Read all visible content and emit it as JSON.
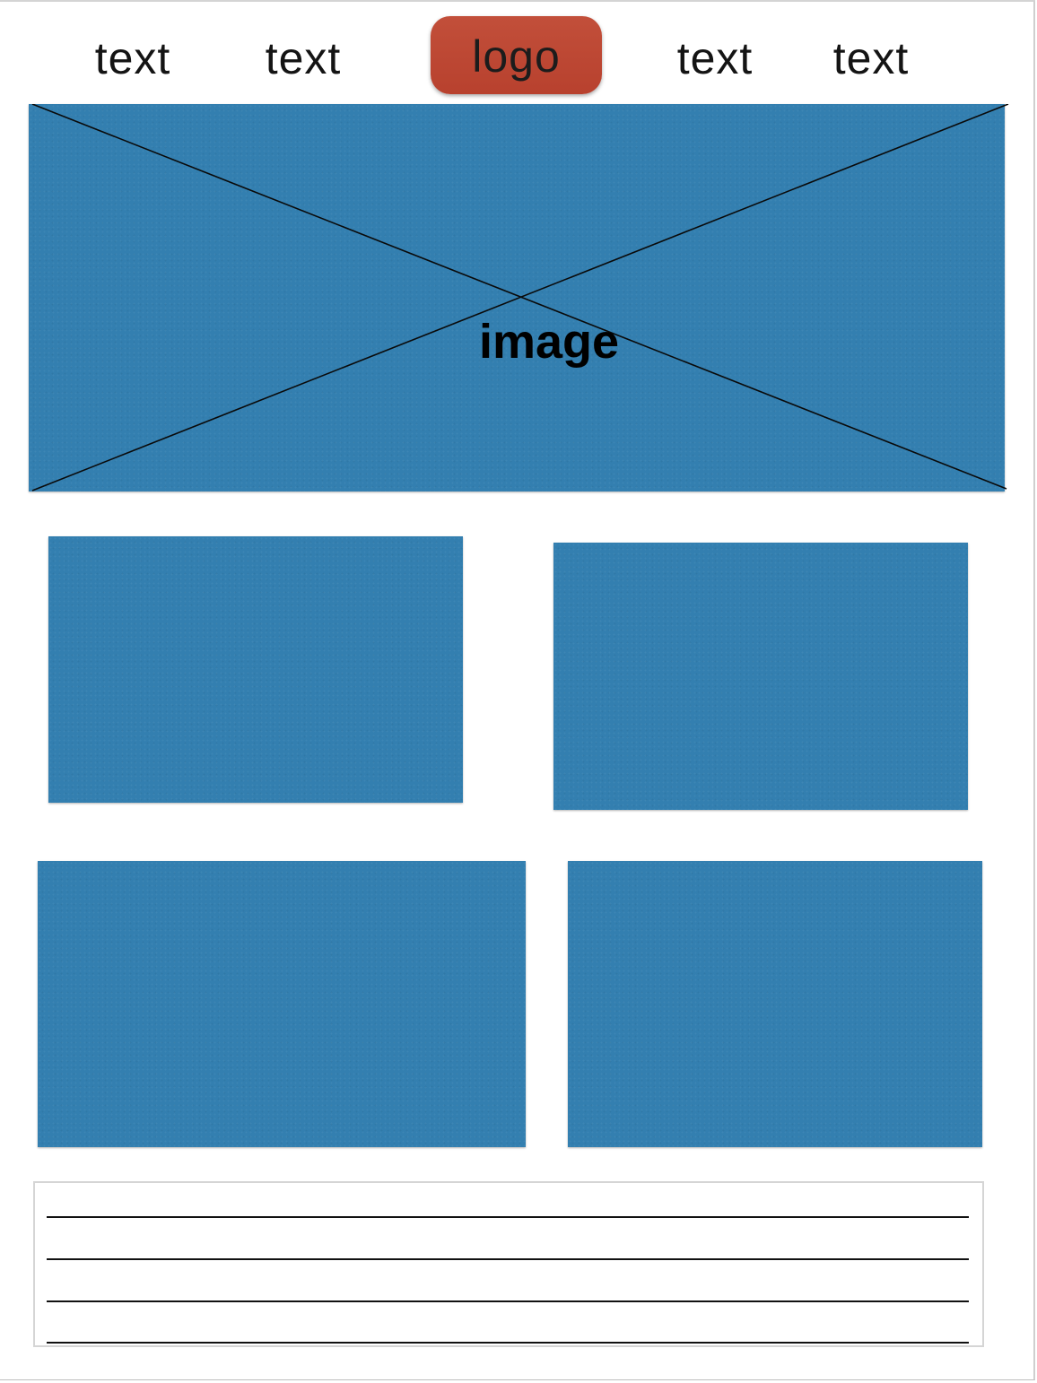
{
  "nav": {
    "items": [
      {
        "label": "text"
      },
      {
        "label": "text"
      },
      {
        "label": "text"
      },
      {
        "label": "text"
      }
    ],
    "logo_label": "logo"
  },
  "hero": {
    "label": "image"
  },
  "colors": {
    "tile_fill": "#337fb0",
    "logo_fill": "#bb4632",
    "text": "#141414"
  }
}
